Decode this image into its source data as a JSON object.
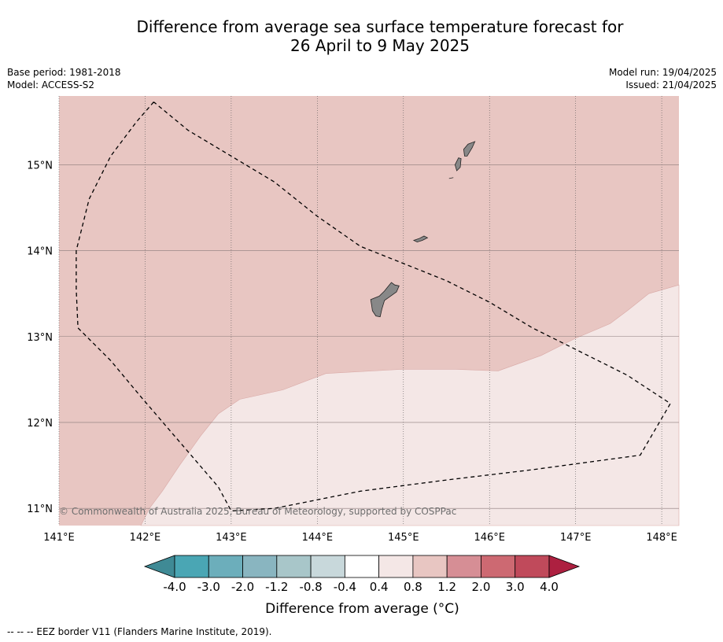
{
  "title_line1": "Difference from average sea surface temperature forecast for",
  "title_line2": "26 April to 9 May 2025",
  "meta_left": {
    "base_period": "Base period: 1981-2018",
    "model": "Model: ACCESS-S2"
  },
  "meta_right": {
    "model_run": "Model run: 19/04/2025",
    "issued": "Issued: 21/04/2025"
  },
  "map": {
    "lon_range": [
      141.0,
      148.2
    ],
    "lat_range": [
      10.8,
      15.8
    ],
    "lon_ticks": [
      {
        "value": 141,
        "label": "141°E"
      },
      {
        "value": 142,
        "label": "142°E"
      },
      {
        "value": 143,
        "label": "143°E"
      },
      {
        "value": 144,
        "label": "144°E"
      },
      {
        "value": 145,
        "label": "145°E"
      },
      {
        "value": 146,
        "label": "146°E"
      },
      {
        "value": 147,
        "label": "147°E"
      },
      {
        "value": 148,
        "label": "148°E"
      }
    ],
    "lat_ticks": [
      {
        "value": 11,
        "label": "11°N"
      },
      {
        "value": 12,
        "label": "12°N"
      },
      {
        "value": 13,
        "label": "13°N"
      },
      {
        "value": 14,
        "label": "14°N"
      },
      {
        "value": 15,
        "label": "15°N"
      }
    ],
    "regions": [
      {
        "name": "anomaly 0.8 to 1.2",
        "color": "#e8c6c2"
      },
      {
        "name": "anomaly 0.4 to 0.8",
        "color": "#f4e7e6"
      }
    ],
    "land_color": "#888888",
    "copyright": "© Commonwealth of Australia 2025, Bureau of Meteorology, supported by COSPPac"
  },
  "colorbar": {
    "min_color": "#3f8a95",
    "max_color": "#ad2040",
    "colors": [
      "#4aa6b4",
      "#6caebb",
      "#89b5c0",
      "#a8c6c9",
      "#c8d8db",
      "#ffffff",
      "#f4e7e6",
      "#e8c6c2",
      "#d68e95",
      "#cd6972",
      "#c04a5b"
    ],
    "labels": [
      "-4.0",
      "-3.0",
      "-2.0",
      "-1.2",
      "-0.8",
      "-0.4",
      "0.4",
      "0.8",
      "1.2",
      "2.0",
      "3.0",
      "4.0"
    ],
    "title": "Difference from average (°C)"
  },
  "footnote": "--  --  -- EEZ border V11 (Flanders Marine Institute, 2019)."
}
